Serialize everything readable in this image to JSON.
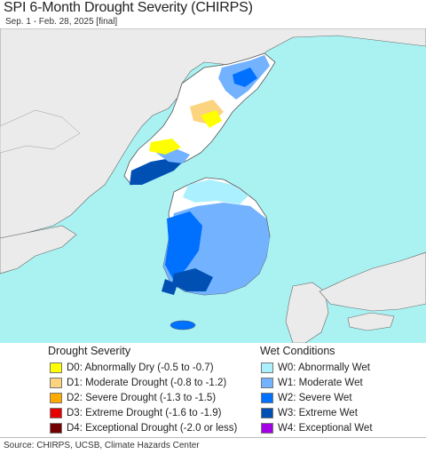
{
  "header": {
    "title": "SPI 6-Month Drought Severity (CHIRPS)",
    "subtitle": "Sep. 1 - Feb. 28, 2025 [final]"
  },
  "colors": {
    "sea": "#aaf2f2",
    "land": "#ffffff",
    "outside_land": "#ebebeb",
    "border": "#555555"
  },
  "legend": {
    "drought_title": "Drought Severity",
    "drought_items": [
      {
        "label": "D0: Abnormally Dry (-0.5 to -0.7)",
        "color": "#ffff00"
      },
      {
        "label": "D1: Moderate Drought (-0.8 to -1.2)",
        "color": "#fcd37f"
      },
      {
        "label": "D2: Severe Drought (-1.3 to -1.5)",
        "color": "#ffaa00"
      },
      {
        "label": "D3: Extreme Drought (-1.6 to -1.9)",
        "color": "#e60000"
      },
      {
        "label": "D4: Exceptional Drought (-2.0 or less)",
        "color": "#730000"
      }
    ],
    "wet_title": "Wet Conditions",
    "wet_items": [
      {
        "label": "W0: Abnormally Wet",
        "color": "#aaf0ff"
      },
      {
        "label": "W1: Moderate Wet",
        "color": "#73b2ff"
      },
      {
        "label": "W2: Severe Wet",
        "color": "#0070ff"
      },
      {
        "label": "W3: Extreme Wet",
        "color": "#0050b4"
      },
      {
        "label": "W4: Exceptional Wet",
        "color": "#a300e6"
      }
    ]
  },
  "footer": {
    "source": "Source: CHIRPS, UCSB, Climate Hazards Center"
  }
}
